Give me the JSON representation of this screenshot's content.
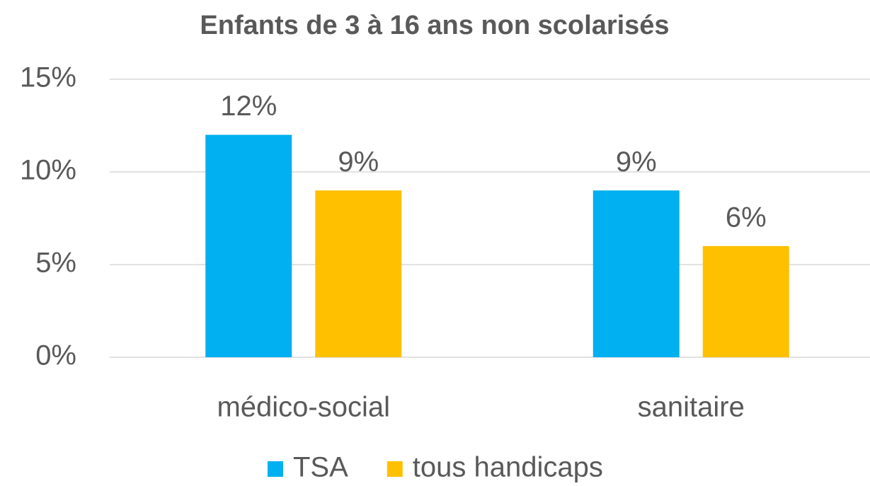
{
  "chart_data": {
    "type": "bar",
    "title": "Enfants de 3 à 16 ans non scolarisés",
    "categories": [
      "médico-social",
      "sanitaire"
    ],
    "series": [
      {
        "name": "TSA",
        "color": "#00b0f0",
        "values": [
          12,
          9
        ],
        "value_labels": [
          "12%",
          "9%"
        ]
      },
      {
        "name": "tous handicaps",
        "color": "#ffc000",
        "values": [
          9,
          6
        ],
        "value_labels": [
          "9%",
          "6%"
        ]
      }
    ],
    "ylim": [
      0,
      15
    ],
    "yticks": [
      {
        "value": 0,
        "label": "0%"
      },
      {
        "value": 5,
        "label": "5%"
      },
      {
        "value": 10,
        "label": "10%"
      },
      {
        "value": 15,
        "label": "15%"
      }
    ],
    "grid": true,
    "legend": "bottom"
  }
}
